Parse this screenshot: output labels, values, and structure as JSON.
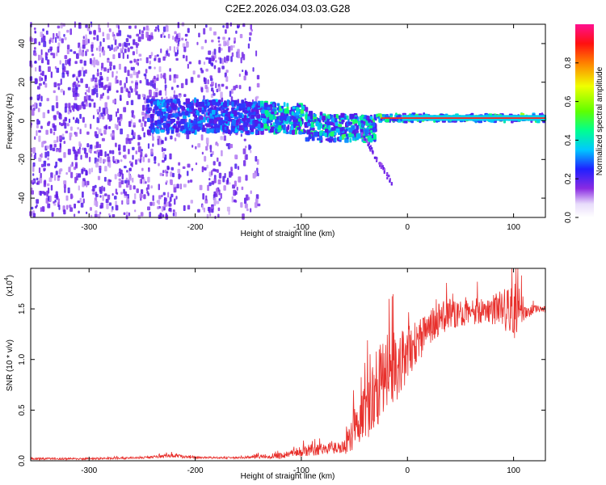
{
  "title": "C2E2.2026.034.03.03.G28",
  "colors": {
    "spectrogram_low": "#d9c8f5",
    "spectrogram_mid": "#6a10e8",
    "snr_line": "#e8302c",
    "axis": "#000000"
  },
  "chart_data": [
    {
      "type": "heatmap",
      "title": "C2E2.2026.034.03.03.G28",
      "xlabel": "Height of straight line (km)",
      "ylabel": "Frequency (Hz)",
      "xlim": [
        -355,
        130
      ],
      "ylim": [
        -50,
        50
      ],
      "xticks": [
        -300,
        -200,
        -100,
        0,
        100
      ],
      "yticks": [
        -40,
        -20,
        0,
        20,
        40
      ],
      "colorbar": {
        "label": "Normalized spectral amplitude",
        "range": [
          0,
          1
        ],
        "ticks": [
          "0.0",
          "0.2",
          "0.4",
          "0.6",
          "0.8"
        ],
        "tick_values": [
          0.0,
          0.2,
          0.4,
          0.6,
          0.8
        ]
      },
      "regions": [
        {
          "name": "noise",
          "x": [
            -355,
            -140
          ],
          "freq": [
            -50,
            50
          ],
          "amplitude": 0.15
        },
        {
          "name": "signal-scatter",
          "x": [
            -245,
            -30
          ],
          "freq": [
            -10,
            12
          ],
          "amplitude": 0.35
        },
        {
          "name": "tracked-line",
          "x": [
            -30,
            130
          ],
          "freq": [
            0,
            3
          ],
          "amplitude": 0.55
        },
        {
          "name": "trailing-streak",
          "x": [
            -45,
            -15
          ],
          "freq": [
            -32,
            -5
          ],
          "amplitude": 0.12
        }
      ]
    },
    {
      "type": "line",
      "xlabel": "Height of straight line (km)",
      "ylabel": "SNR (10 * v/v)",
      "y_multiplier": "(x10",
      "y_exponent": "4",
      "xlim": [
        -355,
        130
      ],
      "ylim": [
        0,
        1.9
      ],
      "xticks": [
        -300,
        -200,
        -100,
        0,
        100
      ],
      "yticks": [
        "0.0",
        "0.5",
        "1.0",
        "1.5"
      ],
      "ytick_values": [
        0.0,
        0.5,
        1.0,
        1.5
      ],
      "series": [
        {
          "name": "SNR",
          "x": [
            -355,
            -300,
            -250,
            -220,
            -200,
            -180,
            -160,
            -140,
            -120,
            -110,
            -100,
            -90,
            -80,
            -70,
            -60,
            -55,
            -50,
            -45,
            -40,
            -35,
            -30,
            -25,
            -20,
            -15,
            -10,
            -5,
            0,
            5,
            10,
            15,
            20,
            25,
            30,
            35,
            40,
            45,
            50,
            55,
            60,
            65,
            70,
            75,
            80,
            85,
            90,
            95,
            100,
            105,
            110,
            115,
            120,
            130
          ],
          "y": [
            0.02,
            0.02,
            0.03,
            0.05,
            0.03,
            0.03,
            0.03,
            0.04,
            0.05,
            0.07,
            0.09,
            0.11,
            0.12,
            0.12,
            0.14,
            0.2,
            0.32,
            0.42,
            0.5,
            0.6,
            0.7,
            0.78,
            0.85,
            0.88,
            0.95,
            1.0,
            1.05,
            1.1,
            1.18,
            1.25,
            1.3,
            1.35,
            1.4,
            1.42,
            1.45,
            1.45,
            1.45,
            1.45,
            1.47,
            1.48,
            1.48,
            1.48,
            1.48,
            1.5,
            1.5,
            1.5,
            1.5,
            1.5,
            1.49,
            1.48,
            1.5,
            1.5
          ],
          "spread": [
            0.01,
            0.01,
            0.01,
            0.02,
            0.01,
            0.01,
            0.01,
            0.02,
            0.03,
            0.04,
            0.05,
            0.06,
            0.06,
            0.06,
            0.08,
            0.15,
            0.22,
            0.28,
            0.32,
            0.35,
            0.4,
            0.4,
            0.42,
            0.38,
            0.36,
            0.3,
            0.28,
            0.25,
            0.22,
            0.2,
            0.2,
            0.18,
            0.17,
            0.16,
            0.15,
            0.14,
            0.13,
            0.13,
            0.13,
            0.14,
            0.14,
            0.14,
            0.15,
            0.18,
            0.2,
            0.25,
            0.3,
            0.25,
            0.1,
            0.06,
            0.04,
            0.03
          ]
        }
      ]
    }
  ]
}
